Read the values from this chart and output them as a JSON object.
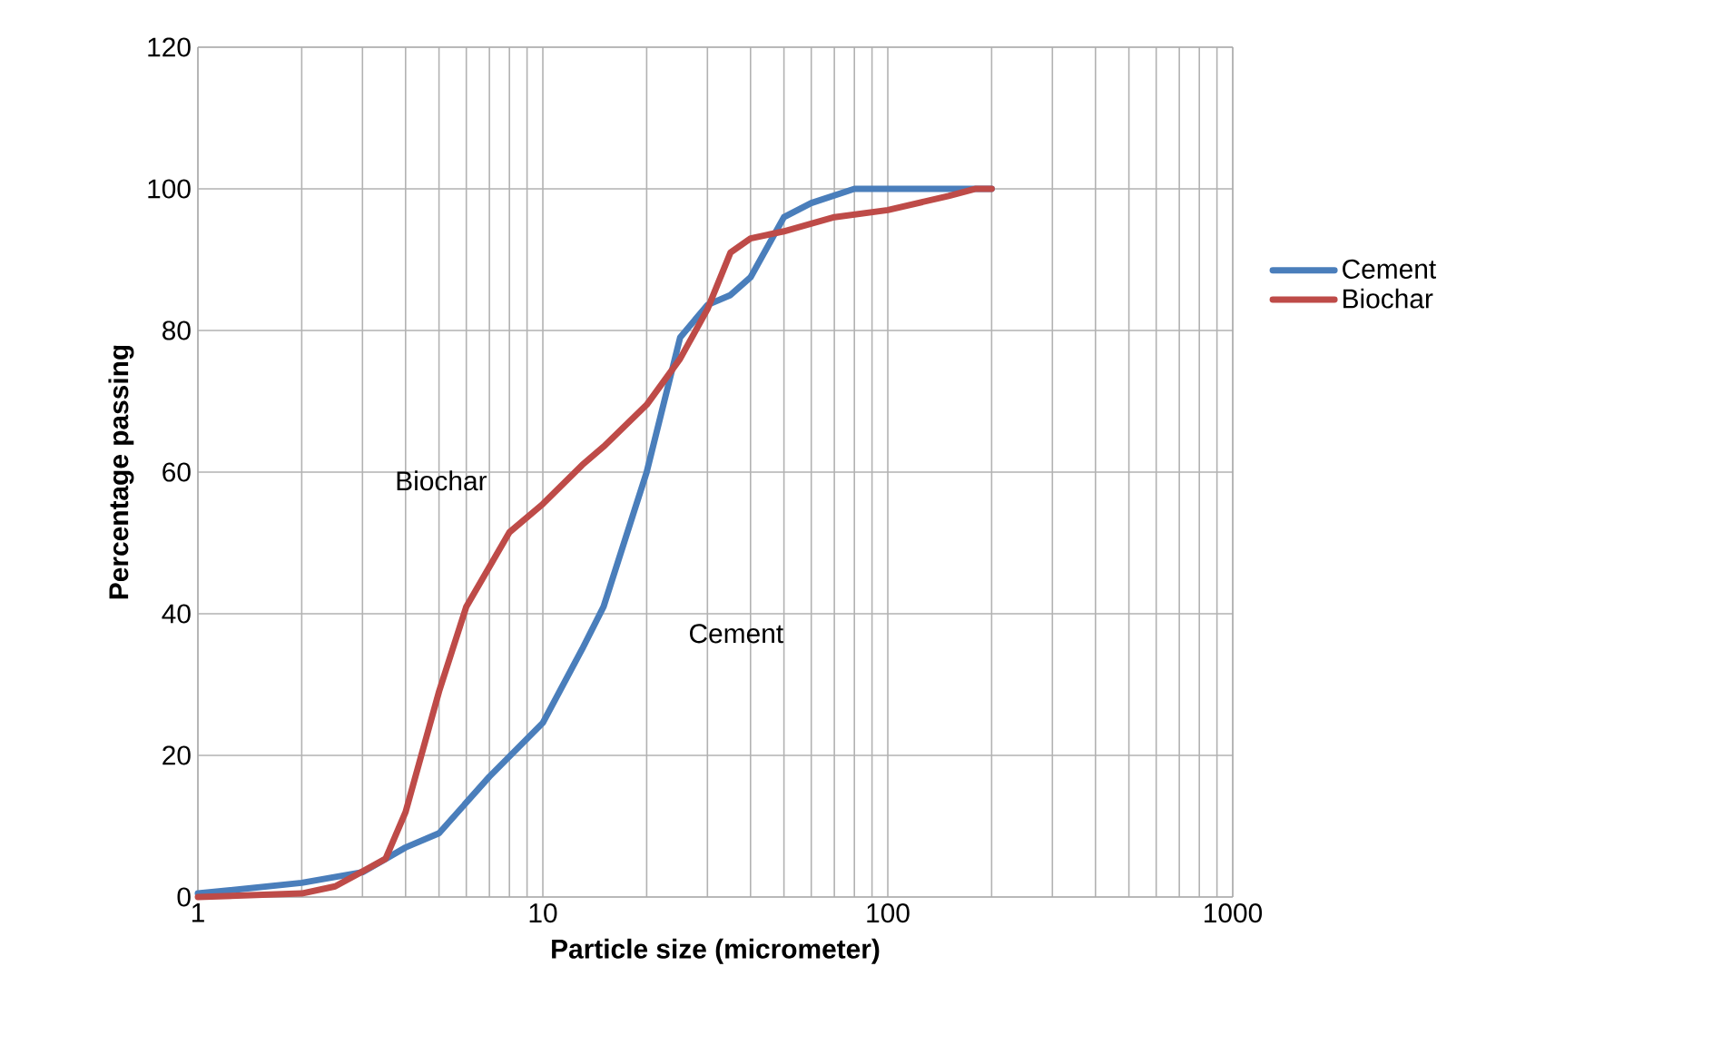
{
  "chart_data": {
    "type": "line",
    "xlabel": "Particle size (micrometer)",
    "ylabel": "Percentage passing",
    "log": "x",
    "xlim": [
      1,
      1000
    ],
    "xticks": [
      1,
      10,
      100,
      1000
    ],
    "ylim": [
      0,
      120
    ],
    "yticks": [
      0,
      20,
      40,
      60,
      80,
      100,
      120
    ],
    "grid": true,
    "legend": "right",
    "marker": "none",
    "line_style": "solid",
    "series": [
      {
        "name": "Cement",
        "color": "#4a7ebb",
        "x": [
          1,
          2,
          3,
          4,
          5,
          7,
          10,
          13,
          15,
          20,
          25,
          30,
          35,
          40,
          50,
          60,
          80,
          200
        ],
        "values": [
          0.5,
          2,
          3.5,
          7,
          9,
          17,
          24.6,
          35,
          41,
          60,
          79,
          83.6,
          85,
          87.5,
          96,
          98,
          100,
          100
        ]
      },
      {
        "name": "Biochar",
        "color": "#be4b48",
        "x": [
          1,
          2,
          2.5,
          3,
          3.5,
          4,
          5,
          6,
          8,
          10,
          13,
          15,
          20,
          25,
          30,
          35,
          40,
          50,
          70,
          100,
          150,
          180,
          200
        ],
        "values": [
          0,
          0.5,
          1.5,
          3.6,
          5.4,
          12,
          29,
          41,
          51.5,
          55.5,
          61,
          63.6,
          69.5,
          76,
          83,
          91,
          93,
          94,
          96,
          97,
          99,
          100,
          100
        ]
      }
    ],
    "annotations": [
      "Biochar",
      "Cement"
    ]
  }
}
